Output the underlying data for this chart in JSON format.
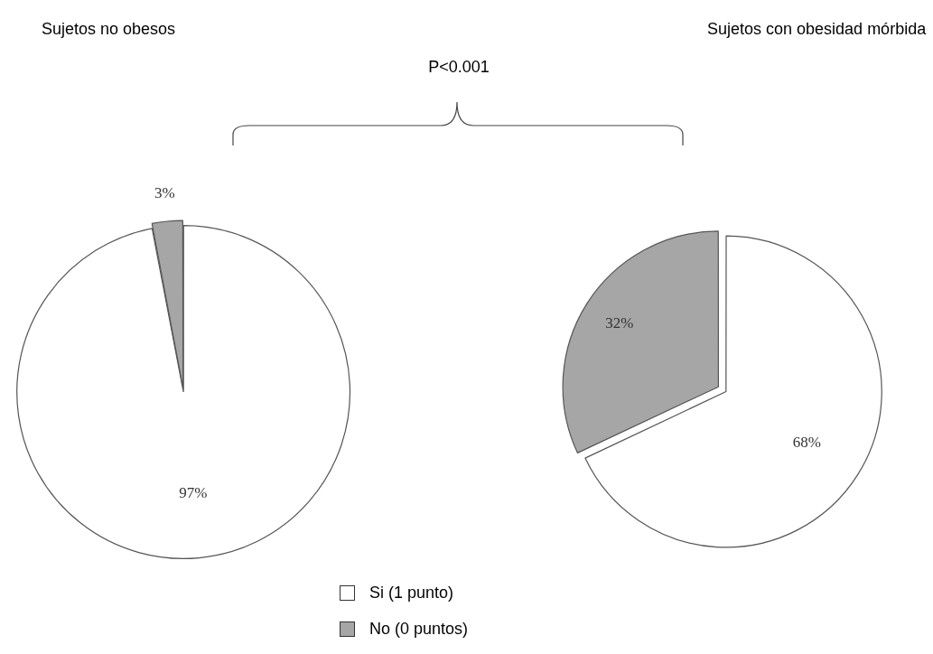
{
  "chart_data": {
    "type": "pie",
    "categories": [
      "Si (1 punto)",
      "No (0 puntos)"
    ],
    "colors": [
      "#ffffff",
      "#a6a6a6"
    ],
    "legend": "bottom",
    "annotations": [
      "P<0.001"
    ],
    "series": [
      {
        "name": "Sujetos no obesos",
        "values": [
          97,
          3
        ],
        "value_labels": [
          "97%",
          "3%"
        ]
      },
      {
        "name": "Sujetos con obesidad mórbida",
        "values": [
          68,
          32
        ],
        "value_labels": [
          "68%",
          "32%"
        ]
      }
    ]
  }
}
